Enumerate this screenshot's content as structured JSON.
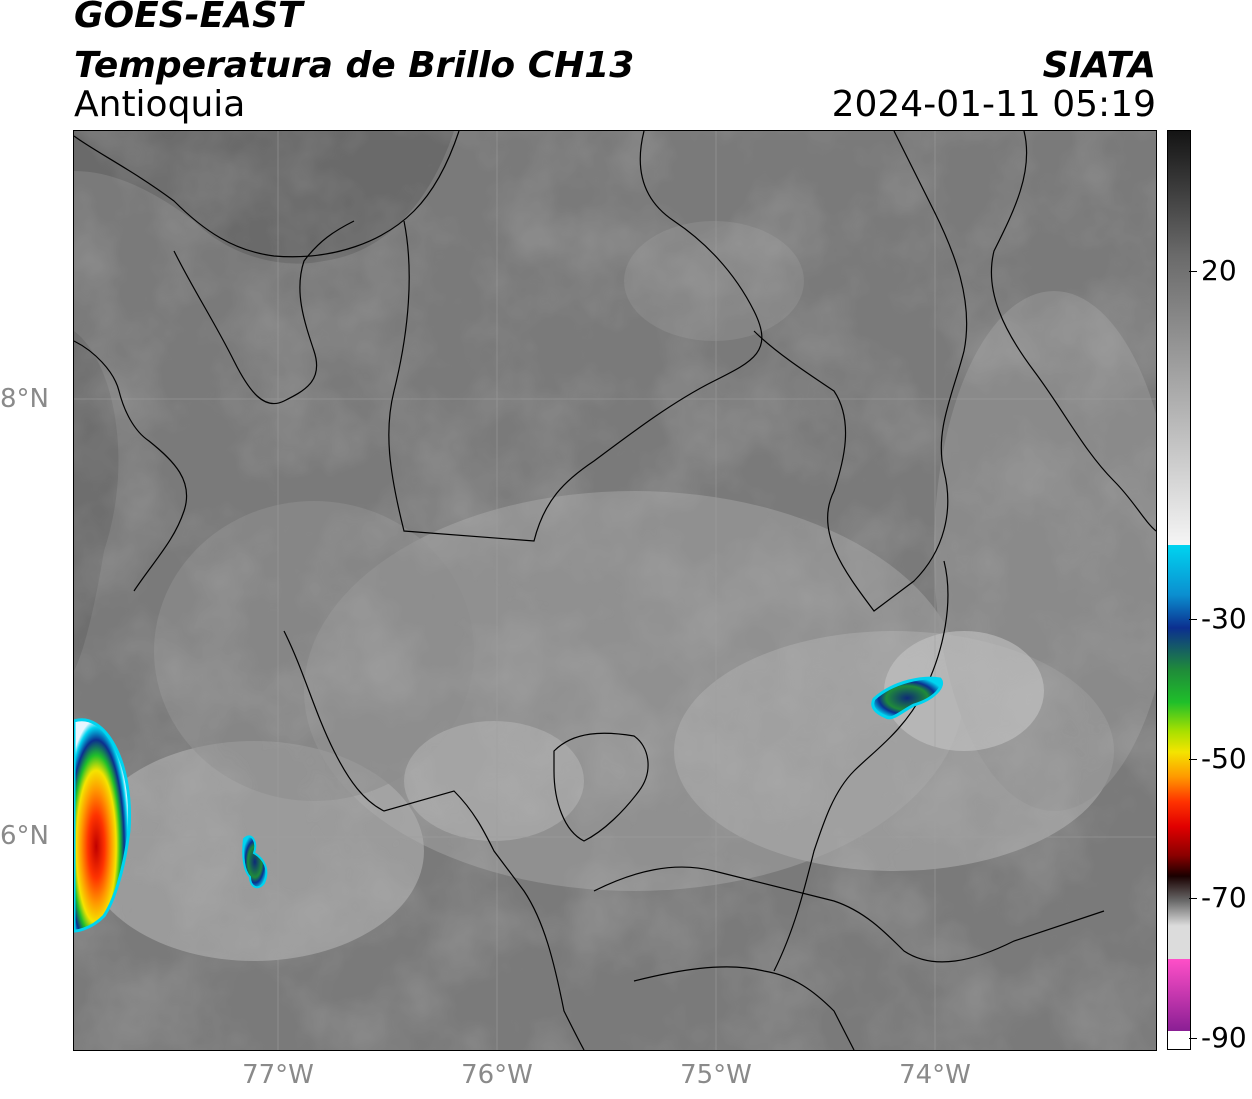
{
  "header": {
    "satellite": "GOES-EAST",
    "product": "Temperatura de Brillo CH13",
    "region": "Antioquia",
    "agency": "SIATA",
    "datetime": "2024-01-11 05:19"
  },
  "map": {
    "latitude_labels": [
      "8°N",
      "6°N"
    ],
    "longitude_labels": [
      "77°W",
      "76°W",
      "75°W",
      "74°W"
    ],
    "gridlines": true,
    "cold_cloud_cells": [
      "west-coast-convective-cell",
      "pacific-small-cell",
      "magdalena-small-cell"
    ]
  },
  "colorbar": {
    "labels": [
      "20",
      "-30",
      "-50",
      "-70",
      "-90"
    ],
    "colors": {
      "warm_top": "#141414",
      "gray_mid": "#8c8c8c",
      "white": "#f5f5f5",
      "cyan": "#00d4f0",
      "blue": "#0b2f8f",
      "green": "#1fbf2a",
      "yellow": "#f4e400",
      "orange": "#ff7b00",
      "red": "#e10000",
      "dark_red": "#2a0000",
      "pink": "#ff4fc8",
      "purple": "#8a1f94"
    }
  }
}
